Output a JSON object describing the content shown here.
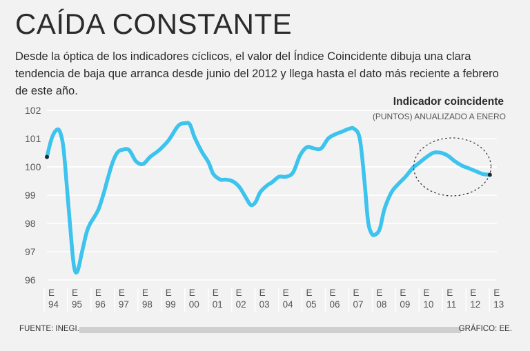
{
  "header": {
    "title": "CAÍDA CONSTANTE",
    "subtitle": "Desde la óptica de los indicadores cíclicos, el valor del Índice Coincidente dibuja una clara tendencia de baja que arranca desde junio del 2012 y llega hasta el dato más reciente a febrero de este año."
  },
  "footer": {
    "source": "FUENTE: INEGI.",
    "credit": "GRÁFICO: EE."
  },
  "colors": {
    "line": "#3cc3ee",
    "grid": "#ffffff",
    "text": "#2b2b2b",
    "tick": "#555555"
  },
  "chart_data": {
    "type": "line",
    "title": "Indicador coincidente",
    "subtitle": "(PUNTOS) ANUALIZADO A ENERO",
    "ylim": [
      96,
      102
    ],
    "yticks": [
      96,
      97,
      98,
      99,
      100,
      101,
      102
    ],
    "xlim": [
      1994,
      2013.2
    ],
    "xticks": [
      {
        "top": "E",
        "bottom": "94"
      },
      {
        "top": "E",
        "bottom": "95"
      },
      {
        "top": "E",
        "bottom": "96"
      },
      {
        "top": "E",
        "bottom": "97"
      },
      {
        "top": "E",
        "bottom": "98"
      },
      {
        "top": "E",
        "bottom": "99"
      },
      {
        "top": "E",
        "bottom": "00"
      },
      {
        "top": "E",
        "bottom": "01"
      },
      {
        "top": "E",
        "bottom": "02"
      },
      {
        "top": "E",
        "bottom": "03"
      },
      {
        "top": "E",
        "bottom": "04"
      },
      {
        "top": "E",
        "bottom": "05"
      },
      {
        "top": "E",
        "bottom": "06"
      },
      {
        "top": "E",
        "bottom": "07"
      },
      {
        "top": "E",
        "bottom": "08"
      },
      {
        "top": "E",
        "bottom": "09"
      },
      {
        "top": "E",
        "bottom": "10"
      },
      {
        "top": "E",
        "bottom": "11"
      },
      {
        "top": "E",
        "bottom": "12"
      },
      {
        "top": "E",
        "bottom": "13"
      }
    ],
    "reference_line": 100,
    "series": [
      {
        "name": "Indicador coincidente",
        "x": [
          1994.0,
          1994.2,
          1994.4,
          1994.55,
          1994.7,
          1994.85,
          1995.0,
          1995.15,
          1995.3,
          1995.5,
          1995.7,
          1995.85,
          1996.0,
          1996.2,
          1996.4,
          1996.6,
          1996.8,
          1997.0,
          1997.2,
          1997.5,
          1997.8,
          1998.1,
          1998.4,
          1998.8,
          1999.2,
          1999.6,
          1999.9,
          2000.1,
          2000.3,
          2000.6,
          2000.9,
          2001.1,
          2001.4,
          2001.6,
          2001.9,
          2002.2,
          2002.5,
          2002.7,
          2002.9,
          2003.1,
          2003.4,
          2003.6,
          2003.9,
          2004.2,
          2004.5,
          2004.8,
          2005.1,
          2005.4,
          2005.7,
          2006.0,
          2006.3,
          2006.6,
          2006.9,
          2007.1,
          2007.35,
          2007.55,
          2007.7,
          2007.85,
          2008.0,
          2008.2,
          2008.4,
          2008.7,
          2009.0,
          2009.3,
          2009.6,
          2009.9,
          2010.2,
          2010.5,
          2010.8,
          2011.1,
          2011.4,
          2011.7,
          2012.0,
          2012.3,
          2012.6,
          2012.9
        ],
        "values": [
          100.35,
          101.0,
          101.3,
          101.25,
          100.7,
          99.3,
          97.8,
          96.5,
          96.3,
          97.0,
          97.7,
          98.0,
          98.2,
          98.5,
          99.0,
          99.6,
          100.15,
          100.5,
          100.6,
          100.6,
          100.2,
          100.1,
          100.35,
          100.6,
          100.95,
          101.45,
          101.55,
          101.5,
          101.05,
          100.55,
          100.15,
          99.75,
          99.55,
          99.55,
          99.5,
          99.3,
          98.9,
          98.65,
          98.75,
          99.1,
          99.35,
          99.45,
          99.65,
          99.65,
          99.8,
          100.4,
          100.7,
          100.65,
          100.65,
          101.0,
          101.15,
          101.25,
          101.35,
          101.35,
          101.0,
          99.5,
          98.1,
          97.65,
          97.6,
          97.8,
          98.5,
          99.1,
          99.4,
          99.65,
          99.95,
          100.15,
          100.35,
          100.5,
          100.5,
          100.4,
          100.2,
          100.05,
          99.95,
          99.85,
          99.75,
          99.72
        ]
      }
    ],
    "highlight": {
      "label": "tendencia de baja",
      "x_center": 2011.3,
      "y_center": 100.0
    }
  }
}
